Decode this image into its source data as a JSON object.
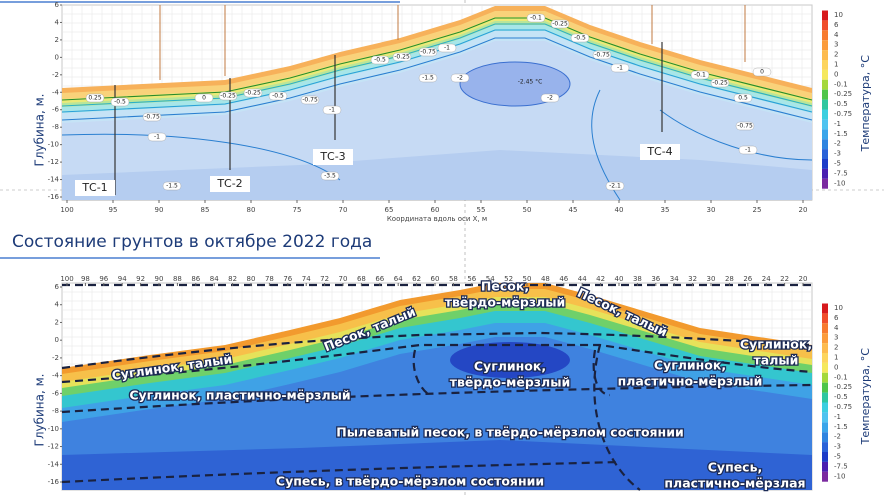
{
  "top_panel": {
    "y_label": "Глубина, м.",
    "x_label": "Координата вдоль оси X, м",
    "yticks": [
      6,
      4,
      2,
      0,
      -2,
      -4,
      -6,
      -8,
      -10,
      -12,
      -14,
      -16
    ],
    "xticks": [
      100,
      95,
      90,
      85,
      80,
      75,
      70,
      65,
      60,
      55,
      50,
      45,
      40,
      35,
      30,
      25,
      20
    ],
    "boreholes": [
      "ТС-1",
      "ТС-2",
      "ТС-3",
      "ТС-4"
    ],
    "center_label": "-2.45 °C",
    "contour_labels": [
      "0.25",
      "-0.5",
      "-0.75",
      "-1",
      "-1.5",
      "0",
      "-0.25",
      "-0.25",
      "-0.5",
      "-0.75",
      "-1",
      "-3.5",
      "-0.5",
      "-0.25",
      "-0.75",
      "-1",
      "-1.5",
      "-2",
      "-2",
      "-0.1",
      "-0.25",
      "-0.5",
      "-0.75",
      "-1",
      "-0.1",
      "-0.25",
      "0.5",
      "-0.75",
      "-1",
      "-2.1",
      "0"
    ]
  },
  "legend": {
    "title": "Температура, °C",
    "items": [
      {
        "label": "10",
        "color": "#d7191c"
      },
      {
        "label": "6",
        "color": "#f04e2b"
      },
      {
        "label": "4",
        "color": "#f77b2f"
      },
      {
        "label": "3",
        "color": "#fb9c3c"
      },
      {
        "label": "2",
        "color": "#fdbb4f"
      },
      {
        "label": "1",
        "color": "#fdd55e"
      },
      {
        "label": "0",
        "color": "#f5e85d"
      },
      {
        "label": "-0.1",
        "color": "#a4d83c"
      },
      {
        "label": "-0.25",
        "color": "#4fc54a"
      },
      {
        "label": "-0.5",
        "color": "#2fc7a0"
      },
      {
        "label": "-0.75",
        "color": "#3ccfe0"
      },
      {
        "label": "-1",
        "color": "#4fc3f0"
      },
      {
        "label": "-1.5",
        "color": "#3aa5ea"
      },
      {
        "label": "-2",
        "color": "#2f84e0"
      },
      {
        "label": "-3",
        "color": "#2a62d8"
      },
      {
        "label": "-5",
        "color": "#1d3cc8"
      },
      {
        "label": "-7.5",
        "color": "#4a1fb0"
      },
      {
        "label": "-10",
        "color": "#7b2aa0"
      }
    ]
  },
  "heading": "Состояние грунтов в октябре 2022 года",
  "bottom_panel": {
    "y_label": "Глубина, м.",
    "yticks": [
      6,
      4,
      2,
      0,
      -2,
      -4,
      -6,
      -8,
      -10,
      -12,
      -14,
      -16
    ],
    "xticks": [
      100,
      98,
      96,
      94,
      92,
      90,
      88,
      86,
      84,
      82,
      80,
      78,
      76,
      74,
      72,
      70,
      68,
      66,
      64,
      62,
      60,
      58,
      56,
      54,
      52,
      50,
      48,
      46,
      44,
      42,
      40,
      38,
      36,
      34,
      32,
      30,
      28,
      26,
      24,
      22,
      20
    ],
    "layers": [
      {
        "lines": [
          "Песок, талый"
        ]
      },
      {
        "lines": [
          "Песок, талый"
        ]
      },
      {
        "lines": [
          "Песок,",
          "твёрдо-мёрзлый"
        ]
      },
      {
        "lines": [
          "Суглинок, талый"
        ]
      },
      {
        "lines": [
          "Суглинок,",
          "талый"
        ]
      },
      {
        "lines": [
          "Суглинок,",
          "твёрдо-мёрзлый"
        ]
      },
      {
        "lines": [
          "Суглинок,",
          "пластично-мёрзлый"
        ]
      },
      {
        "lines": [
          "Суглинок, пластично-мёрзлый"
        ]
      },
      {
        "lines": [
          "Пылеватый песок, в твёрдо-мёрзлом состоянии"
        ]
      },
      {
        "lines": [
          "Супесь, в твёрдо-мёрзлом состоянии"
        ]
      },
      {
        "lines": [
          "Супесь,",
          "пластично-мёрзлая"
        ]
      }
    ]
  }
}
